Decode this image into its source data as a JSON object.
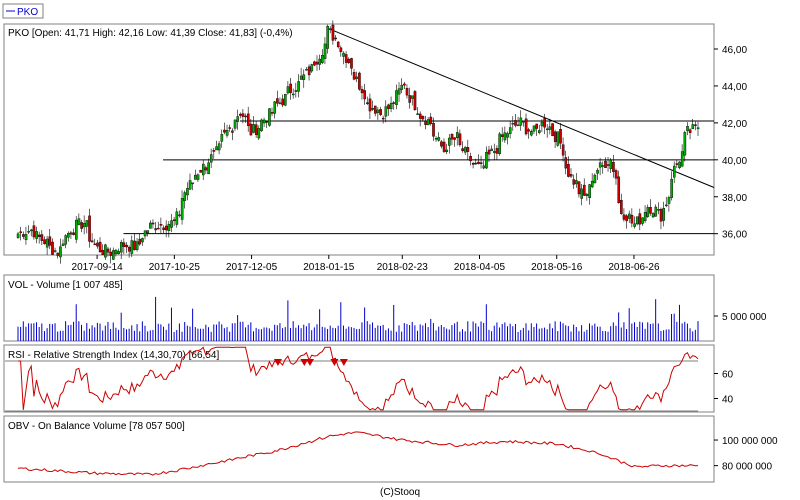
{
  "legend": {
    "label": "PKO",
    "color": "#0000cc"
  },
  "footer": "(C)Stooq",
  "chart_data": [
    {
      "type": "candlestick",
      "panel": "price",
      "title": "PKO [Open: 41,71  High: 42,16  Low: 41,39  Close: 41,83] (-0,4%)",
      "x_tick_labels": [
        "2017-09-14",
        "2017-10-25",
        "2017-12-05",
        "2018-01-15",
        "2018-02-23",
        "2018-04-05",
        "2018-05-16",
        "2018-06-26"
      ],
      "y_tick_labels": [
        "46,00",
        "44,00",
        "42,00",
        "40,00",
        "38,00",
        "36,00"
      ],
      "ylim": [
        34.9,
        47.3
      ],
      "up_color": "#00aa00",
      "down_color": "#cc0000",
      "horizontal_levels": [
        42.1,
        40.0,
        36.0
      ],
      "trendline": {
        "from": [
          "2018-01-15",
          47.1
        ],
        "to": [
          "2018-07-30",
          38.5
        ]
      },
      "close_path": [
        [
          "2017-08-03",
          36.0
        ],
        [
          "2017-08-10",
          36.2
        ],
        [
          "2017-08-17",
          35.6
        ],
        [
          "2017-08-24",
          35.0
        ],
        [
          "2017-08-31",
          36.2
        ],
        [
          "2017-09-07",
          36.6
        ],
        [
          "2017-09-14",
          35.2
        ],
        [
          "2017-09-21",
          35.0
        ],
        [
          "2017-09-28",
          35.4
        ],
        [
          "2017-10-05",
          35.3
        ],
        [
          "2017-10-12",
          36.4
        ],
        [
          "2017-10-19",
          36.5
        ],
        [
          "2017-10-25",
          36.6
        ],
        [
          "2017-11-01",
          38.5
        ],
        [
          "2017-11-08",
          39.5
        ],
        [
          "2017-11-15",
          40.2
        ],
        [
          "2017-11-22",
          41.5
        ],
        [
          "2017-11-29",
          42.6
        ],
        [
          "2017-12-05",
          41.5
        ],
        [
          "2017-12-12",
          42.2
        ],
        [
          "2017-12-19",
          43.0
        ],
        [
          "2017-12-26",
          43.8
        ],
        [
          "2018-01-02",
          44.5
        ],
        [
          "2018-01-09",
          45.5
        ],
        [
          "2018-01-15",
          47.0
        ],
        [
          "2018-01-22",
          46.0
        ],
        [
          "2018-01-29",
          44.5
        ],
        [
          "2018-02-05",
          43.0
        ],
        [
          "2018-02-12",
          42.5
        ],
        [
          "2018-02-19",
          43.2
        ],
        [
          "2018-02-23",
          44.2
        ],
        [
          "2018-03-02",
          42.8
        ],
        [
          "2018-03-09",
          42.0
        ],
        [
          "2018-03-16",
          40.5
        ],
        [
          "2018-03-23",
          41.2
        ],
        [
          "2018-03-30",
          40.0
        ],
        [
          "2018-04-05",
          39.5
        ],
        [
          "2018-04-12",
          40.5
        ],
        [
          "2018-04-19",
          41.5
        ],
        [
          "2018-04-26",
          42.0
        ],
        [
          "2018-05-03",
          41.5
        ],
        [
          "2018-05-09",
          42.0
        ],
        [
          "2018-05-16",
          41.2
        ],
        [
          "2018-05-23",
          39.0
        ],
        [
          "2018-05-30",
          38.0
        ],
        [
          "2018-06-06",
          39.5
        ],
        [
          "2018-06-13",
          40.0
        ],
        [
          "2018-06-19",
          37.2
        ],
        [
          "2018-06-26",
          36.5
        ],
        [
          "2018-07-03",
          37.5
        ],
        [
          "2018-07-10",
          37.0
        ],
        [
          "2018-07-17",
          39.5
        ],
        [
          "2018-07-24",
          41.5
        ],
        [
          "2018-07-30",
          41.8
        ]
      ]
    },
    {
      "type": "bar",
      "panel": "volume",
      "title": "VOL - Volume [1 007 485]",
      "y_tick_labels": [
        "5 000 000"
      ],
      "color": "#0000cc"
    },
    {
      "type": "line",
      "panel": "rsi",
      "title": "RSI - Relative Strength Index (14,30,70) [66,54]",
      "y_tick_labels": [
        "60",
        "40"
      ],
      "color": "#cc0000",
      "ylim": [
        30,
        82
      ],
      "levels": [
        70,
        30
      ],
      "signal_markers_on": [
        "2017-12-19",
        "2018-01-02",
        "2018-01-05",
        "2018-01-18",
        "2018-01-23"
      ]
    },
    {
      "type": "line",
      "panel": "obv",
      "title": "OBV - On Balance Volume [78 057 500]",
      "y_tick_labels": [
        "100 000 000",
        "80 000 000"
      ],
      "color": "#cc0000",
      "ylim": [
        68000000,
        118000000
      ],
      "path": [
        [
          "2017-08-03",
          78000000
        ],
        [
          "2017-09-14",
          74000000
        ],
        [
          "2017-10-12",
          73000000
        ],
        [
          "2017-10-25",
          76000000
        ],
        [
          "2017-11-22",
          84000000
        ],
        [
          "2017-12-19",
          92000000
        ],
        [
          "2018-01-15",
          103000000
        ],
        [
          "2018-01-29",
          106000000
        ],
        [
          "2018-02-23",
          100000000
        ],
        [
          "2018-03-23",
          96000000
        ],
        [
          "2018-04-19",
          99000000
        ],
        [
          "2018-05-16",
          97000000
        ],
        [
          "2018-06-06",
          90000000
        ],
        [
          "2018-06-26",
          79000000
        ],
        [
          "2018-07-10",
          80000000
        ],
        [
          "2018-07-30",
          80000000
        ]
      ]
    }
  ]
}
